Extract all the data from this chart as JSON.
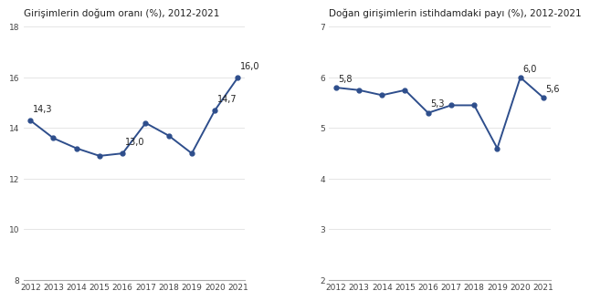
{
  "chart1": {
    "title": "Girişimlerin doğum oranı (%), 2012-2021",
    "years": [
      2012,
      2013,
      2014,
      2015,
      2016,
      2017,
      2018,
      2019,
      2020,
      2021
    ],
    "values": [
      14.3,
      13.6,
      13.2,
      12.9,
      13.0,
      14.2,
      13.7,
      13.0,
      14.7,
      16.0
    ],
    "annotated": {
      "2012": {
        "val": 14.3,
        "label": "14,3",
        "xoff": 0.1,
        "yoff": 0.25
      },
      "2016": {
        "val": 13.0,
        "label": "13,0",
        "xoff": 0.1,
        "yoff": 0.25
      },
      "2020": {
        "val": 14.7,
        "label": "14,7",
        "xoff": 0.1,
        "yoff": 0.25
      },
      "2021": {
        "val": 16.0,
        "label": "16,0",
        "xoff": 0.1,
        "yoff": 0.25
      }
    },
    "ylim": [
      8,
      18
    ],
    "yticks": [
      8,
      10,
      12,
      14,
      16,
      18
    ]
  },
  "chart2": {
    "title": "Doğan girişimlerin istihdamdaki payı (%), 2012-2021",
    "years": [
      2012,
      2013,
      2014,
      2015,
      2016,
      2017,
      2018,
      2019,
      2020,
      2021
    ],
    "values": [
      5.8,
      5.75,
      5.65,
      5.75,
      5.3,
      5.45,
      5.45,
      4.6,
      6.0,
      5.6
    ],
    "annotated": {
      "2012": {
        "val": 5.8,
        "label": "5,8",
        "xoff": 0.1,
        "yoff": 0.08
      },
      "2016": {
        "val": 5.3,
        "label": "5,3",
        "xoff": 0.1,
        "yoff": 0.08
      },
      "2020": {
        "val": 6.0,
        "label": "6,0",
        "xoff": 0.1,
        "yoff": 0.08
      },
      "2021": {
        "val": 5.6,
        "label": "5,6",
        "xoff": 0.1,
        "yoff": 0.08
      }
    },
    "ylim": [
      2,
      7
    ],
    "yticks": [
      2,
      3,
      4,
      5,
      6,
      7
    ]
  },
  "line_color": "#2E4E8C",
  "marker": "o",
  "marker_size": 3.5,
  "line_width": 1.4,
  "title_fontsize": 7.5,
  "tick_fontsize": 6.5,
  "annotation_fontsize": 7.0,
  "background_color": "#ffffff",
  "spine_color": "#aaaaaa",
  "grid_color": "#e0e0e0"
}
